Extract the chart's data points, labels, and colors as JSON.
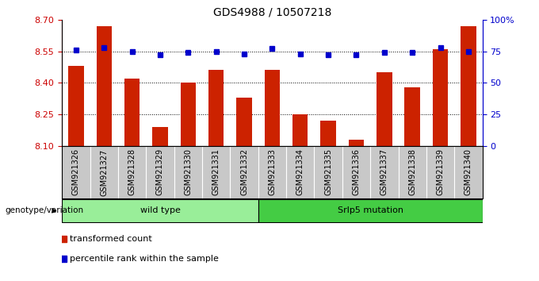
{
  "title": "GDS4988 / 10507218",
  "samples": [
    "GSM921326",
    "GSM921327",
    "GSM921328",
    "GSM921329",
    "GSM921330",
    "GSM921331",
    "GSM921332",
    "GSM921333",
    "GSM921334",
    "GSM921335",
    "GSM921336",
    "GSM921337",
    "GSM921338",
    "GSM921339",
    "GSM921340"
  ],
  "bar_values": [
    8.48,
    8.67,
    8.42,
    8.19,
    8.4,
    8.46,
    8.33,
    8.46,
    8.25,
    8.22,
    8.13,
    8.45,
    8.38,
    8.56,
    8.67
  ],
  "percentile_values": [
    76,
    78,
    75,
    72,
    74,
    75,
    73,
    77,
    73,
    72,
    72,
    74,
    74,
    78,
    75
  ],
  "ylim_left": [
    8.1,
    8.7
  ],
  "ylim_right": [
    0,
    100
  ],
  "yticks_left": [
    8.1,
    8.25,
    8.4,
    8.55,
    8.7
  ],
  "yticks_right": [
    0,
    25,
    50,
    75,
    100
  ],
  "ytick_labels_right": [
    "0",
    "25",
    "50",
    "75",
    "100%"
  ],
  "bar_color": "#cc2200",
  "percentile_color": "#0000cc",
  "wild_type_label": "wild type",
  "srlp5_label": "Srlp5 mutation",
  "wild_type_color": "#99ee99",
  "srlp5_color": "#44cc44",
  "genotype_label": "genotype/variation",
  "legend_bar_label": "transformed count",
  "legend_percentile_label": "percentile rank within the sample",
  "left_axis_color": "#cc0000",
  "right_axis_color": "#0000cc",
  "xtick_bg_color": "#c8c8c8",
  "n_wild": 7,
  "n_srlp": 8
}
